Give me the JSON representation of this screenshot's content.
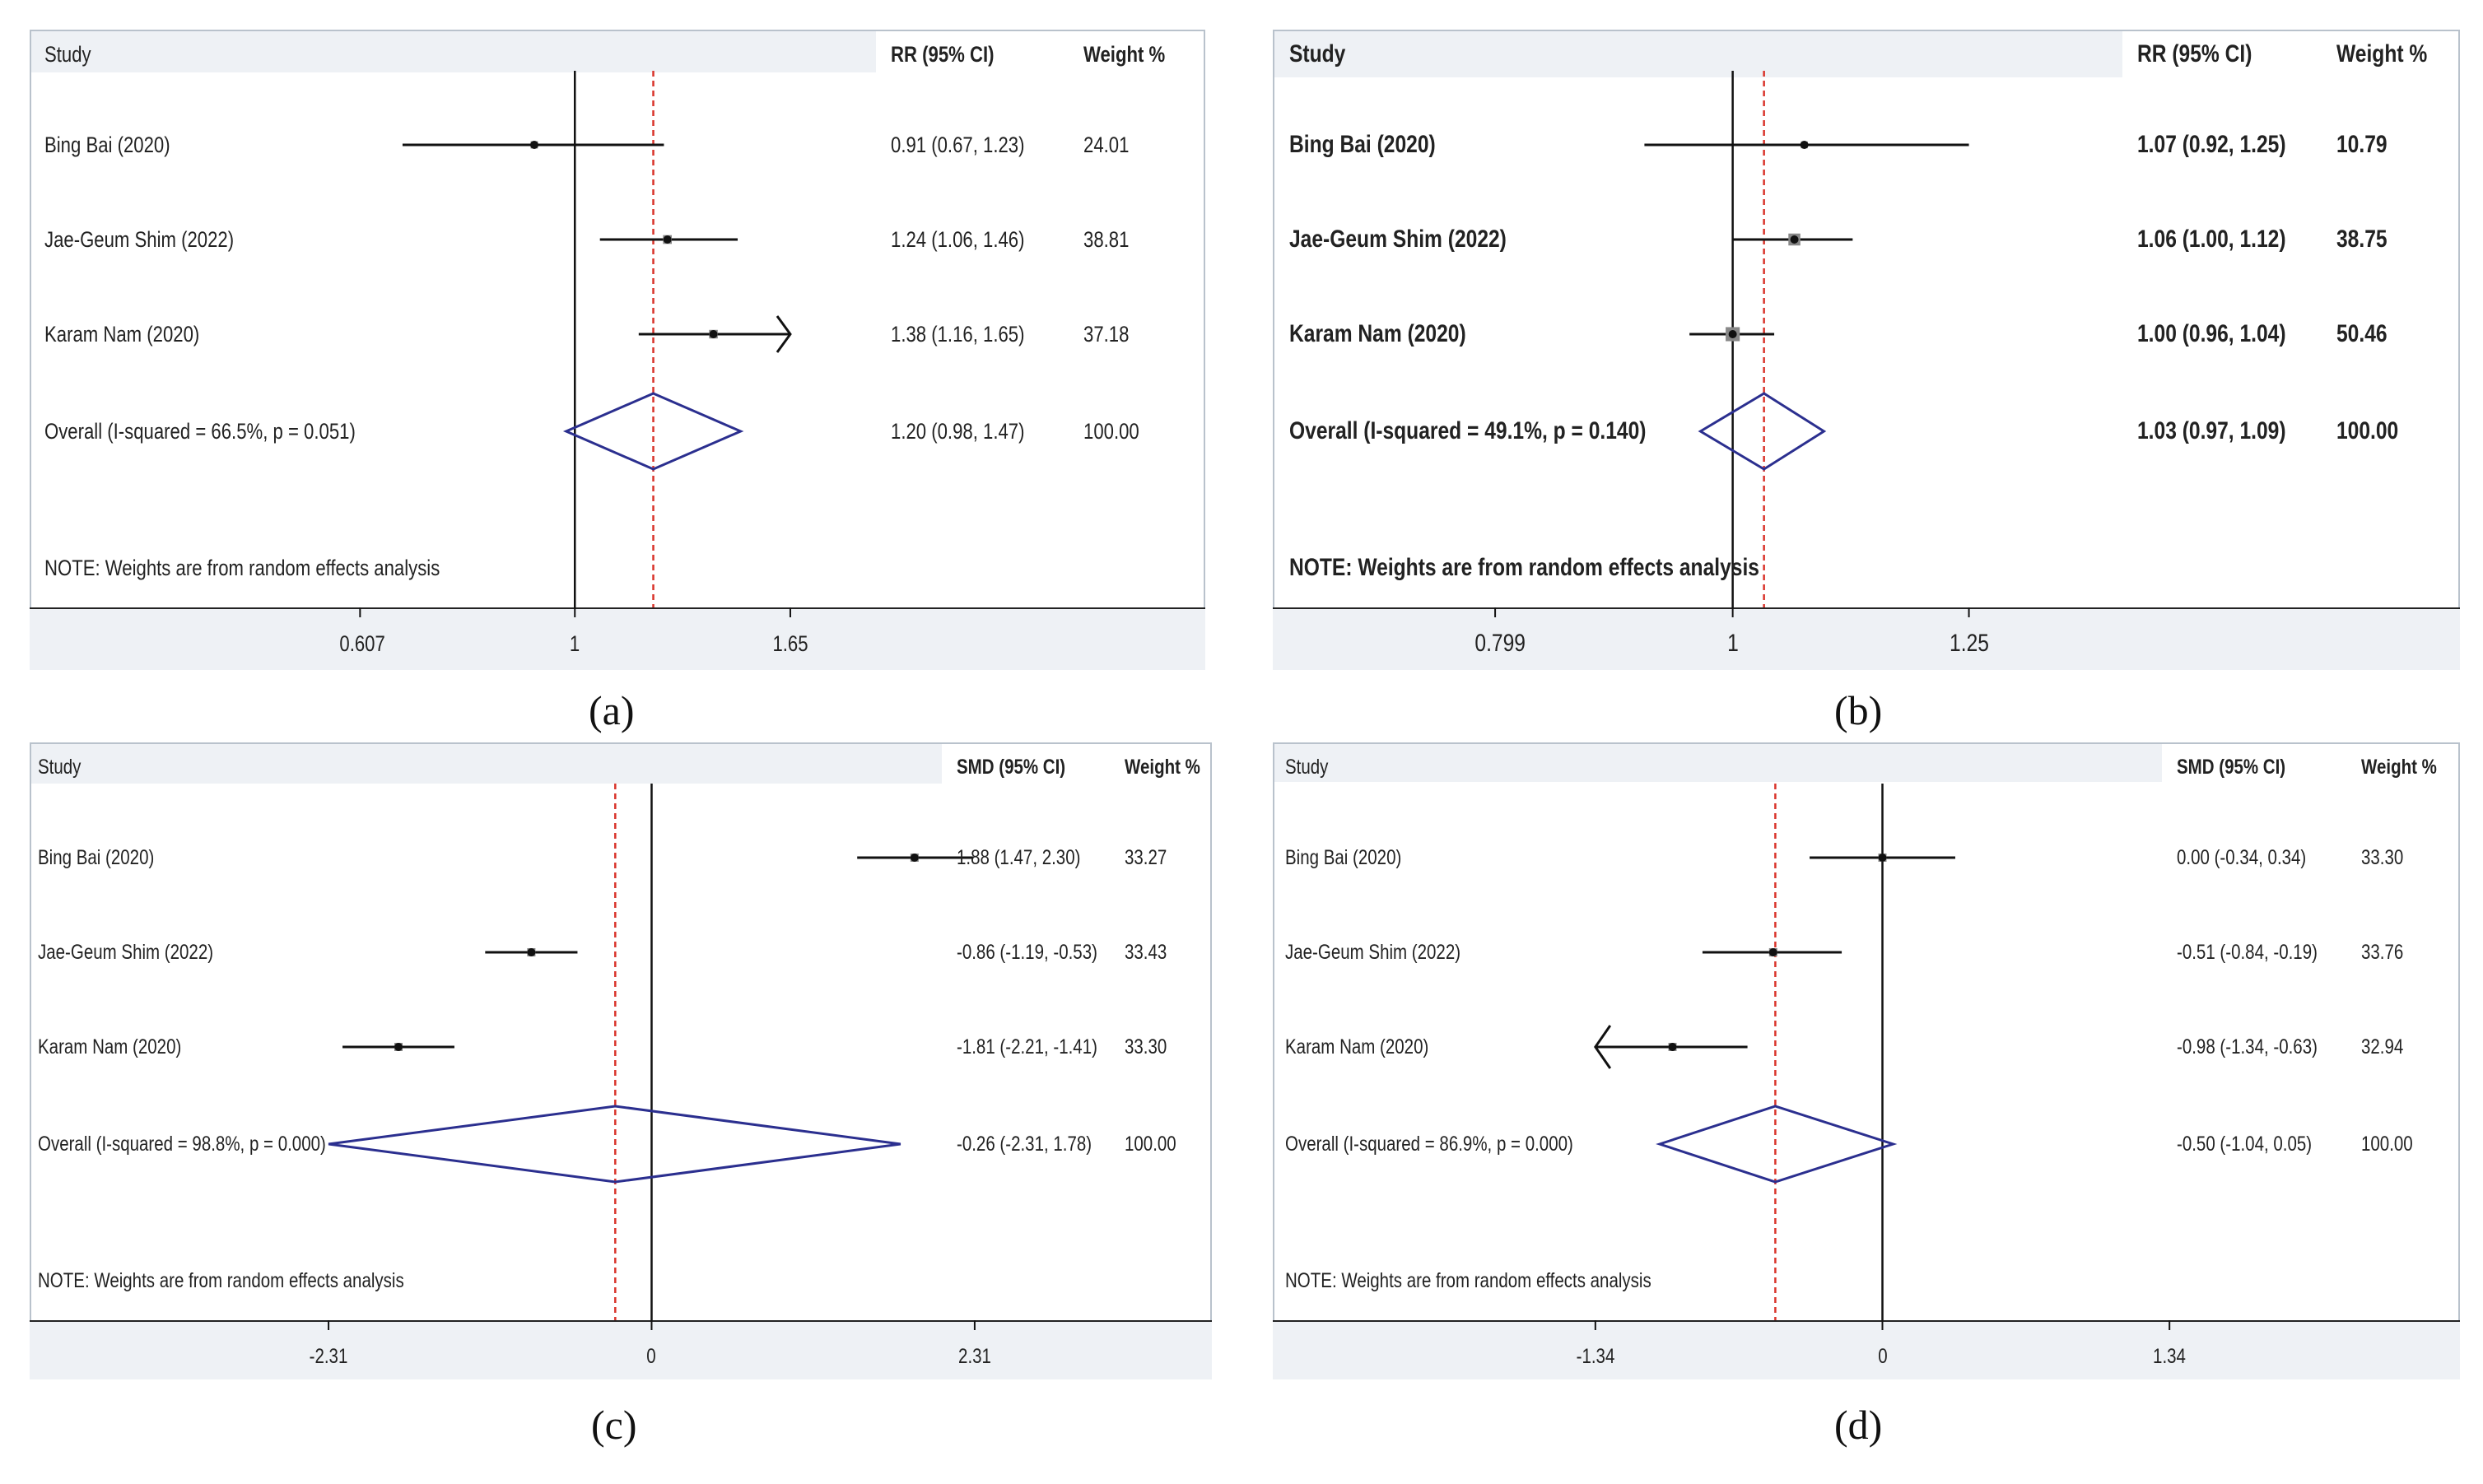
{
  "chart_data": [
    {
      "panel_label": "a",
      "type": "forest",
      "effect_header": "RR (95% CI)",
      "weight_header": "Weight %",
      "study_header": "Study",
      "scale": "log",
      "null_value": 1,
      "xticks": [
        0.607,
        1,
        1.65
      ],
      "xtick_labels": [
        "0.607",
        "1",
        "1.65"
      ],
      "xlim": [
        0.5,
        2.1
      ],
      "studies": [
        {
          "name": "Bing Bai (2020)",
          "estimate": 0.91,
          "lower": 0.67,
          "upper": 1.23,
          "ci_text": "0.91 (0.67, 1.23)",
          "weight": "24.01"
        },
        {
          "name": "Jae-Geum Shim (2022)",
          "estimate": 1.24,
          "lower": 1.06,
          "upper": 1.46,
          "ci_text": "1.24 (1.06, 1.46)",
          "weight": "38.81"
        },
        {
          "name": "Karam Nam (2020)",
          "estimate": 1.38,
          "lower": 1.16,
          "upper": 1.65,
          "ci_text": "1.38 (1.16, 1.65)",
          "weight": "37.18",
          "arrow": "right"
        }
      ],
      "overall": {
        "label": "Overall  (I-squared = 66.5%, p = 0.051)",
        "estimate": 1.2,
        "lower": 0.98,
        "upper": 1.47,
        "ci_text": "1.20 (0.98, 1.47)",
        "weight": "100.00"
      },
      "note": "NOTE: Weights are from random effects analysis"
    },
    {
      "panel_label": "b",
      "type": "forest",
      "effect_header": "RR (95% CI)",
      "weight_header": "Weight %",
      "study_header": "Study",
      "scale": "log",
      "null_value": 1,
      "xticks": [
        0.799,
        1,
        1.25
      ],
      "xtick_labels": [
        "0.799",
        "1",
        "1.25"
      ],
      "xlim": [
        0.7,
        1.5
      ],
      "studies": [
        {
          "name": "Bing Bai (2020)",
          "estimate": 1.07,
          "lower": 0.92,
          "upper": 1.25,
          "ci_text": "1.07 (0.92, 1.25)",
          "weight": "10.79"
        },
        {
          "name": "Jae-Geum Shim (2022)",
          "estimate": 1.06,
          "lower": 1.0,
          "upper": 1.12,
          "ci_text": "1.06 (1.00, 1.12)",
          "weight": "38.75"
        },
        {
          "name": "Karam Nam (2020)",
          "estimate": 1.0,
          "lower": 0.96,
          "upper": 1.04,
          "ci_text": "1.00 (0.96, 1.04)",
          "weight": "50.46"
        }
      ],
      "overall": {
        "label": "Overall  (I-squared = 49.1%, p = 0.140)",
        "estimate": 1.03,
        "lower": 0.97,
        "upper": 1.09,
        "ci_text": "1.03 (0.97, 1.09)",
        "weight": "100.00"
      },
      "note": "NOTE: Weights are from random effects analysis"
    },
    {
      "panel_label": "c",
      "type": "forest",
      "effect_header": "SMD (95% CI)",
      "weight_header": "Weight %",
      "study_header": "Study",
      "scale": "linear",
      "null_value": 0,
      "xticks": [
        -2.31,
        0,
        2.31
      ],
      "xtick_labels": [
        "-2.31",
        "0",
        "2.31"
      ],
      "xlim": [
        -4.3,
        4.0
      ],
      "studies": [
        {
          "name": "Bing Bai (2020)",
          "estimate": 1.88,
          "lower": 1.47,
          "upper": 2.3,
          "ci_text": "1.88 (1.47, 2.30)",
          "weight": "33.27"
        },
        {
          "name": "Jae-Geum Shim (2022)",
          "estimate": -0.86,
          "lower": -1.19,
          "upper": -0.53,
          "ci_text": "-0.86 (-1.19, -0.53)",
          "weight": "33.43"
        },
        {
          "name": "Karam Nam (2020)",
          "estimate": -1.81,
          "lower": -2.21,
          "upper": -1.41,
          "ci_text": "-1.81 (-2.21, -1.41)",
          "weight": "33.30"
        }
      ],
      "overall": {
        "label": "Overall  (I-squared = 98.8%, p = 0.000)",
        "estimate": -0.26,
        "lower": -2.31,
        "upper": 1.78,
        "ci_text": "-0.26 (-2.31, 1.78)",
        "weight": "100.00"
      },
      "note": "NOTE: Weights are from random effects analysis"
    },
    {
      "panel_label": "d",
      "type": "forest",
      "effect_header": "SMD (95% CI)",
      "weight_header": "Weight %",
      "study_header": "Study",
      "scale": "linear",
      "null_value": 0,
      "xticks": [
        -1.34,
        0,
        1.34
      ],
      "xtick_labels": [
        "-1.34",
        "0",
        "1.34"
      ],
      "xlim": [
        -2.5,
        2.4
      ],
      "studies": [
        {
          "name": "Bing Bai (2020)",
          "estimate": 0.0,
          "lower": -0.34,
          "upper": 0.34,
          "ci_text": "0.00 (-0.34, 0.34)",
          "weight": "33.30"
        },
        {
          "name": "Jae-Geum Shim (2022)",
          "estimate": -0.51,
          "lower": -0.84,
          "upper": -0.19,
          "ci_text": "-0.51 (-0.84, -0.19)",
          "weight": "33.76"
        },
        {
          "name": "Karam Nam (2020)",
          "estimate": -0.98,
          "lower": -1.34,
          "upper": -0.63,
          "ci_text": "-0.98 (-1.34, -0.63)",
          "weight": "32.94",
          "arrow": "left"
        }
      ],
      "overall": {
        "label": "Overall  (I-squared = 86.9%, p = 0.000)",
        "estimate": -0.5,
        "lower": -1.04,
        "upper": 0.05,
        "ci_text": "-0.50 (-1.04, 0.05)",
        "weight": "100.00"
      },
      "note": "NOTE: Weights are from random effects analysis"
    }
  ],
  "colors": {
    "ci_line": "#111111",
    "diamond": "#2b2f8f",
    "dashed_line": "#d9342b",
    "null_line": "#111111",
    "frame": "#b9c2cc",
    "axis_strip": "#eef1f5"
  },
  "captions": {
    "a": "(a)",
    "b": "(b)",
    "c": "(c)",
    "d": "(d)"
  }
}
